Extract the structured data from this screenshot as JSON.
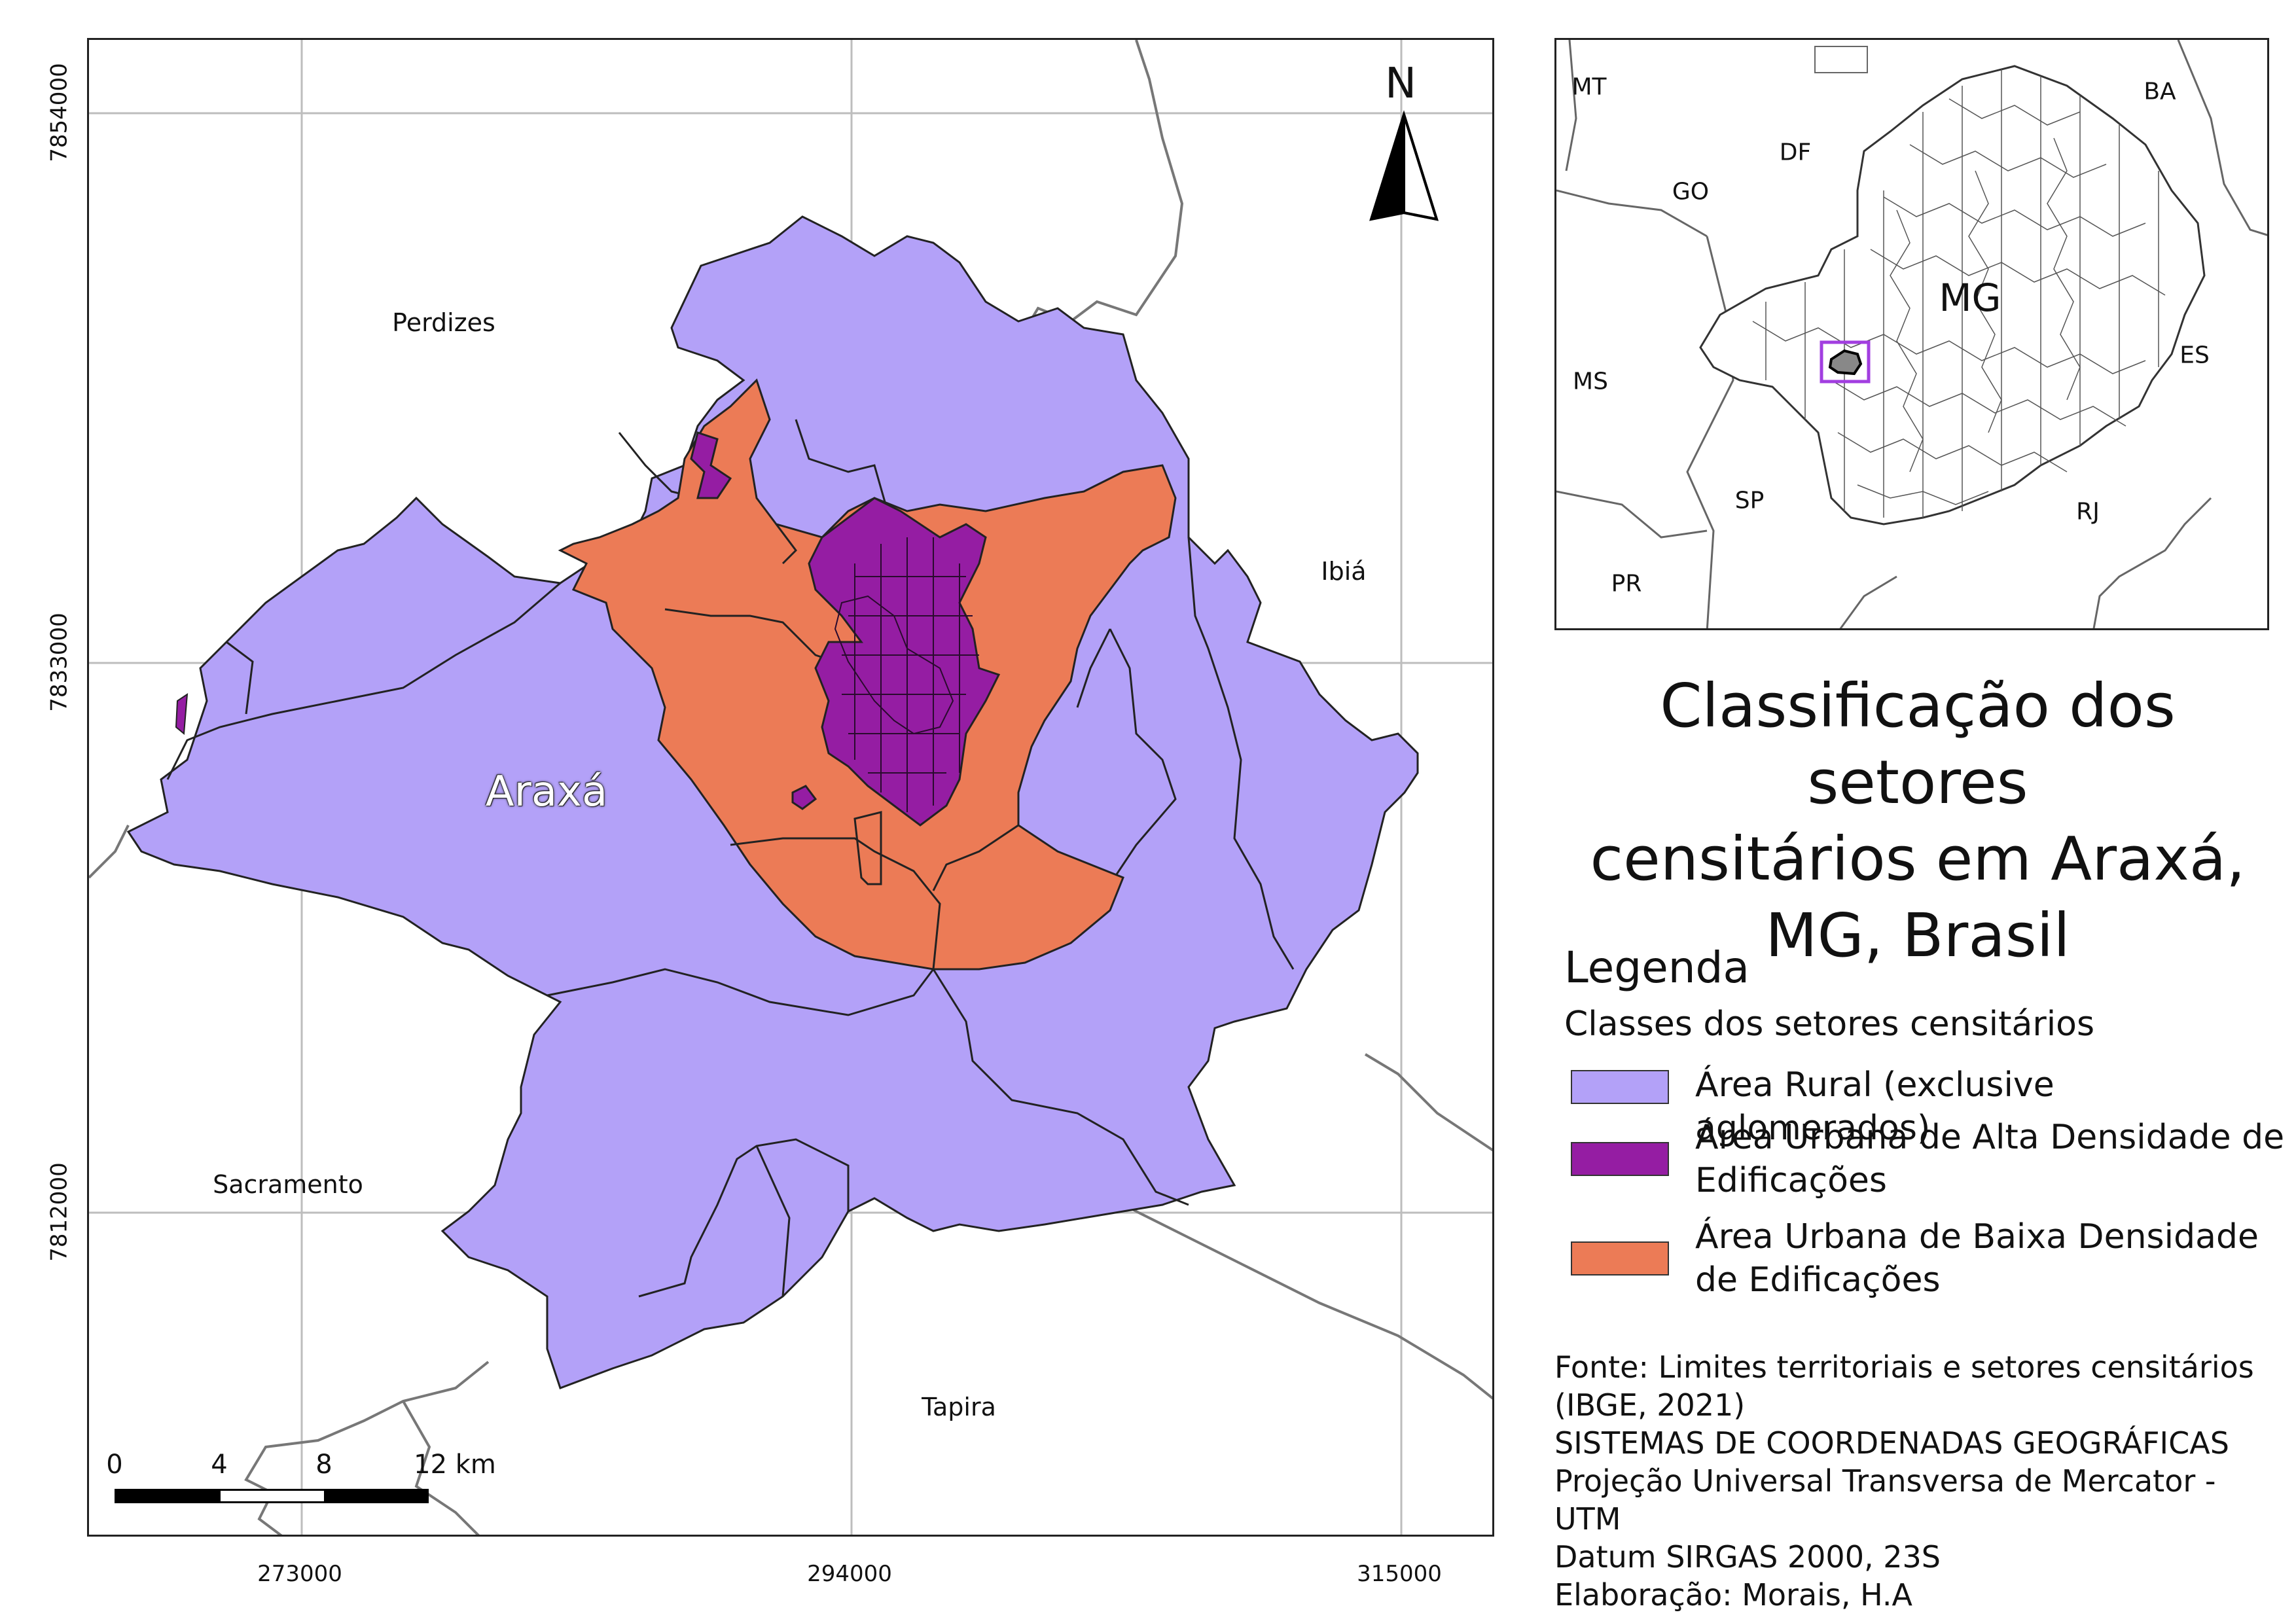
{
  "map": {
    "municipality_label": "Araxá",
    "neighbors": [
      "Perdizes",
      "Ibiá",
      "Sacramento",
      "Tapira"
    ],
    "north_label": "N",
    "y_ticks": [
      "7854000",
      "7833000",
      "7812000"
    ],
    "x_ticks": [
      "273000",
      "294000",
      "315000"
    ],
    "scale_labels": [
      "0",
      "4",
      "8",
      "12 km"
    ],
    "colors": {
      "rural": "#b3a1f8",
      "urban_high": "#951da3",
      "urban_low": "#ec7b56",
      "border": "#222222",
      "neighbor_line": "#777777",
      "grid": "#bdbdbd"
    }
  },
  "inset": {
    "labels": [
      "MT",
      "BA",
      "DF",
      "GO",
      "MG",
      "MS",
      "ES",
      "SP",
      "RJ",
      "PR"
    ],
    "highlight_color": "#a23ee0"
  },
  "title": "Classificação dos setores\ncensitários em Araxá,\nMG, Brasil",
  "legend": {
    "title": "Legenda",
    "subtitle": "Classes dos setores censitários",
    "items": [
      {
        "label": "Área Rural (exclusive aglomerados)",
        "color": "#b3a1f8"
      },
      {
        "label": "Área Urbana de Alta Densidade de Edificações",
        "color": "#951da3"
      },
      {
        "label": "Área Urbana de Baixa Densidade de Edificações",
        "color": "#ec7b56"
      }
    ]
  },
  "source": "Fonte: Limites territoriais e setores censitários\n(IBGE, 2021)\nSISTEMAS DE COORDENADAS GEOGRÁFICAS\nProjeção Universal Transversa de Mercator - UTM\nDatum SIRGAS 2000, 23S\nElaboração: Morais, H.A"
}
